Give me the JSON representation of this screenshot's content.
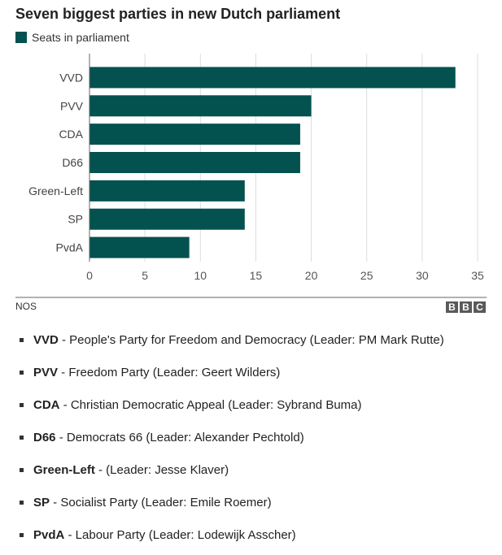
{
  "title": "Seven biggest parties in new Dutch parliament",
  "legend_label": "Seats in parliament",
  "source": "NOS",
  "brand": [
    "B",
    "B",
    "C"
  ],
  "colors": {
    "bar": "#03524f",
    "grid": "#dddddd",
    "axis": "#666666",
    "brand_bg": "#5a5a5a"
  },
  "chart_data": {
    "type": "bar",
    "orientation": "horizontal",
    "title": "Seven biggest parties in new Dutch parliament",
    "categories": [
      "VVD",
      "PVV",
      "CDA",
      "D66",
      "Green-Left",
      "SP",
      "PvdA"
    ],
    "series": [
      {
        "name": "Seats in parliament",
        "values": [
          33,
          20,
          19,
          19,
          14,
          14,
          9
        ]
      }
    ],
    "xlim": [
      0,
      35
    ],
    "x_ticks": [
      0,
      5,
      10,
      15,
      20,
      25,
      30,
      35
    ],
    "grid": true,
    "legend_position": "top-left"
  },
  "notes": [
    {
      "abbr": "VVD",
      "text": " - People's Party for Freedom and Democracy (Leader: PM Mark Rutte)"
    },
    {
      "abbr": "PVV",
      "text": " - Freedom Party (Leader: Geert Wilders)"
    },
    {
      "abbr": "CDA",
      "text": " - Christian Democratic Appeal (Leader: Sybrand Buma)"
    },
    {
      "abbr": "D66",
      "text": " - Democrats 66 (Leader: Alexander Pechtold)"
    },
    {
      "abbr": "Green-Left",
      "text": " - (Leader: Jesse Klaver)"
    },
    {
      "abbr": "SP",
      "text": " - Socialist Party (Leader: Emile Roemer)"
    },
    {
      "abbr": "PvdA",
      "text": " - Labour Party (Leader: Lodewijk Asscher)"
    }
  ]
}
